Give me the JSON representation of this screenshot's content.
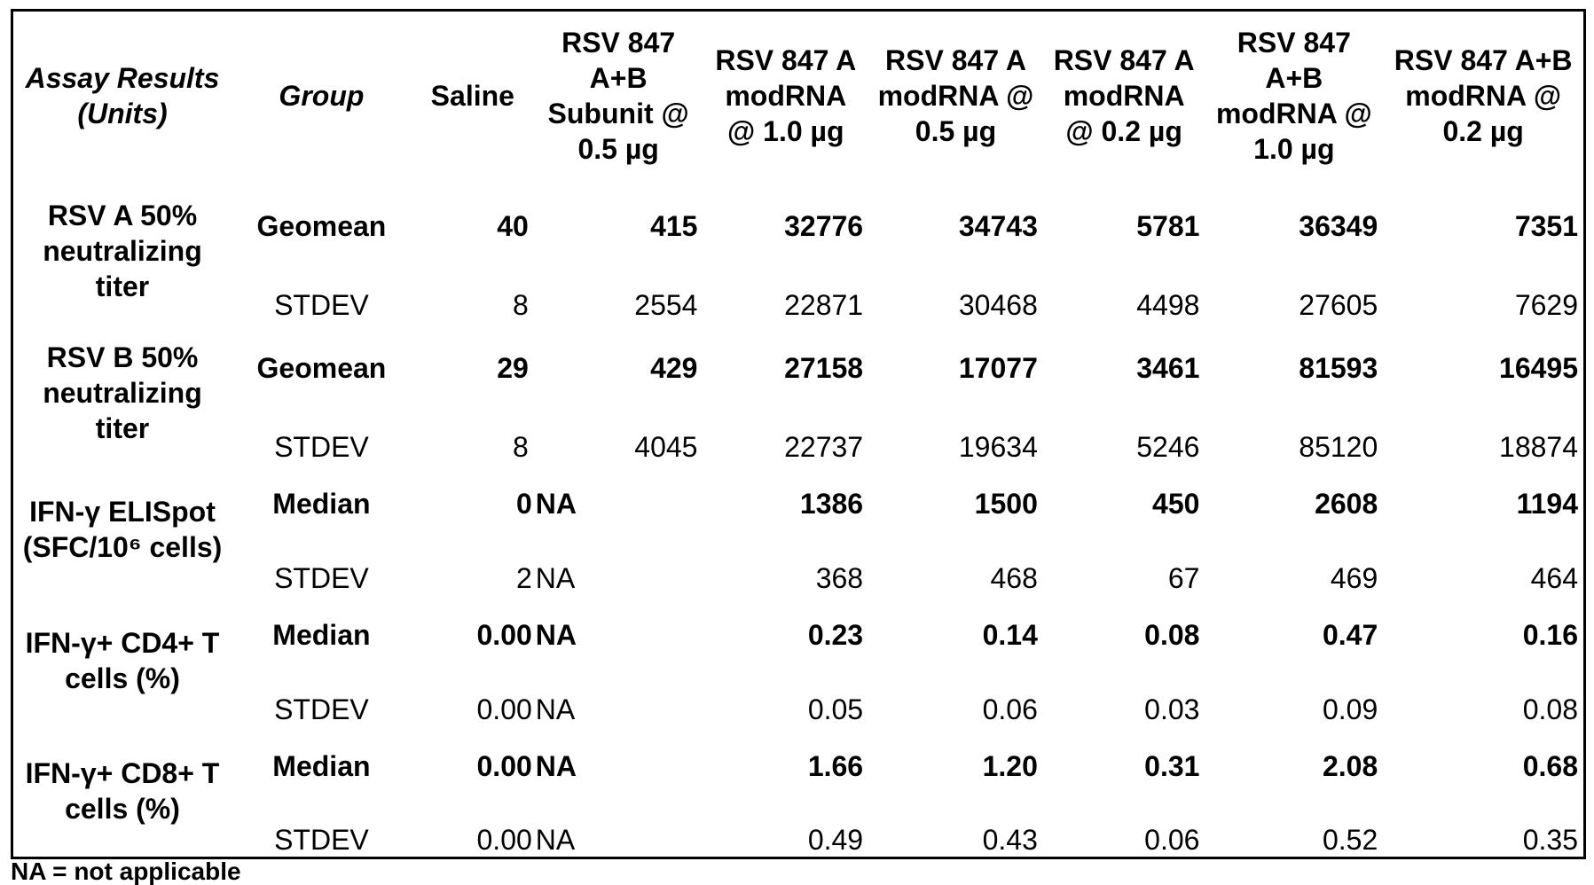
{
  "header": {
    "assay": "Assay Results (Units)",
    "group": "Group",
    "columns": [
      "Saline",
      "RSV 847 A+B Subunit @ 0.5 µg",
      "RSV 847 A modRNA @ 1.0 µg",
      "RSV 847 A modRNA @ 0.5 µg",
      "RSV 847 A modRNA @ 0.2 µg",
      "RSV 847 A+B modRNA @ 1.0 µg",
      "RSV 847 A+B modRNA @ 0.2 µg"
    ]
  },
  "rows": [
    {
      "assay": "RSV A 50% neutralizing titer",
      "stat1": "Geomean",
      "values1": [
        "40",
        "415",
        "32776",
        "34743",
        "5781",
        "36349",
        "7351"
      ],
      "stat2": "STDEV",
      "values2": [
        "8",
        "2554",
        "22871",
        "30468",
        "4498",
        "27605",
        "7629"
      ]
    },
    {
      "assay": "RSV B 50% neutralizing titer",
      "stat1": "Geomean",
      "values1": [
        "29",
        "429",
        "27158",
        "17077",
        "3461",
        "81593",
        "16495"
      ],
      "stat2": "STDEV",
      "values2": [
        "8",
        "4045",
        "22737",
        "19634",
        "5246",
        "85120",
        "18874"
      ]
    },
    {
      "assay": "IFN-γ ELISpot (SFC/10⁶ cells)",
      "stat1": "Median",
      "values1": [
        "0",
        "NA",
        "1386",
        "1500",
        "450",
        "2608",
        "1194"
      ],
      "stat2": "STDEV",
      "values2": [
        "2",
        "NA",
        "368",
        "468",
        "67",
        "469",
        "464"
      ]
    },
    {
      "assay": "IFN-γ+ CD4+ T cells (%)",
      "stat1": "Median",
      "values1": [
        "0.00",
        "NA",
        "0.23",
        "0.14",
        "0.08",
        "0.47",
        "0.16"
      ],
      "stat2": "STDEV",
      "values2": [
        "0.00",
        "NA",
        "0.05",
        "0.06",
        "0.03",
        "0.09",
        "0.08"
      ]
    },
    {
      "assay": "IFN-γ+ CD8+ T cells (%)",
      "stat1": "Median",
      "values1": [
        "0.00",
        "NA",
        "1.66",
        "1.20",
        "0.31",
        "2.08",
        "0.68"
      ],
      "stat2": "STDEV",
      "values2": [
        "0.00",
        "NA",
        "0.49",
        "0.43",
        "0.06",
        "0.52",
        "0.35"
      ]
    }
  ],
  "footer": "NA = not applicable"
}
